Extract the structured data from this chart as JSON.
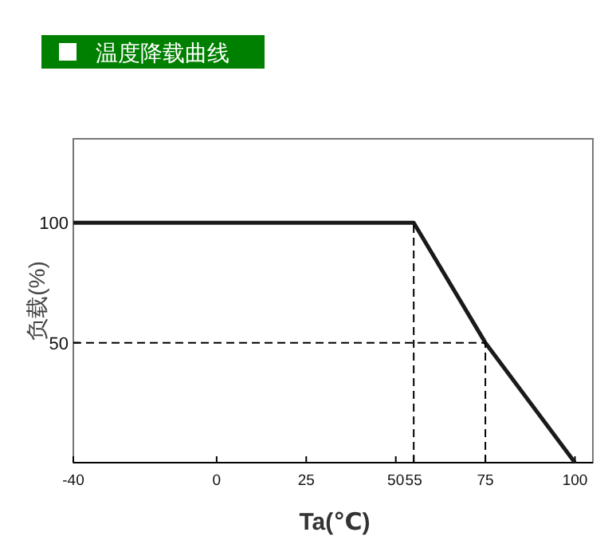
{
  "chart_data": {
    "type": "line",
    "title": "温度降载曲线",
    "xlabel": "Ta(℃)",
    "ylabel": "负载(%)",
    "xlim": [
      -40,
      105
    ],
    "ylim": [
      0,
      135
    ],
    "xticks": [
      -40,
      0,
      25,
      50,
      55,
      75,
      100
    ],
    "yticks": [
      50,
      100
    ],
    "series": [
      {
        "color": "#1a1a1a",
        "line_style": "solid",
        "x": [
          -40,
          55,
          75,
          100
        ],
        "values": [
          100,
          100,
          50,
          0
        ]
      },
      {
        "color": "#000000",
        "line_style": "dashed",
        "x": [
          55,
          55
        ],
        "values": [
          0,
          100
        ]
      },
      {
        "color": "#000000",
        "line_style": "dashed",
        "x": [
          75,
          75
        ],
        "values": [
          0,
          50
        ]
      },
      {
        "color": "#000000",
        "line_style": "dashed",
        "x": [
          -40,
          75
        ],
        "values": [
          50,
          50
        ]
      }
    ]
  }
}
